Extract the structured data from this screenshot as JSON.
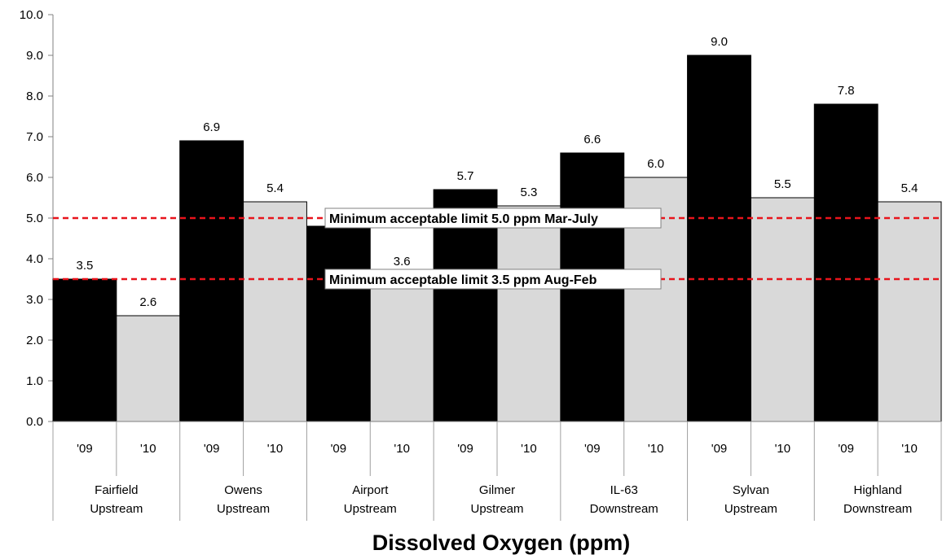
{
  "chart_data": {
    "type": "bar",
    "title": "Dissolved Oxygen (ppm)",
    "groups": [
      {
        "line1": "Fairfield",
        "line2": "Upstream"
      },
      {
        "line1": "Owens",
        "line2": "Upstream"
      },
      {
        "line1": "Airport",
        "line2": "Upstream"
      },
      {
        "line1": "Gilmer",
        "line2": "Upstream"
      },
      {
        "line1": "IL-63",
        "line2": "Downstream"
      },
      {
        "line1": "Sylvan",
        "line2": "Upstream"
      },
      {
        "line1": "Highland",
        "line2": "Downstream"
      }
    ],
    "series": [
      {
        "name": "'09",
        "color": "#000000",
        "values": [
          3.5,
          6.9,
          4.8,
          5.7,
          6.6,
          9.0,
          7.8
        ],
        "labels": [
          "3.5",
          "6.9",
          "4.8",
          "5.7",
          "6.6",
          "9.0",
          "7.8"
        ]
      },
      {
        "name": "'10",
        "color": "#d9d9d9",
        "values": [
          2.6,
          5.4,
          3.6,
          5.3,
          6.0,
          5.5,
          5.4
        ],
        "labels": [
          "2.6",
          "5.4",
          "3.6",
          "5.3",
          "6.0",
          "5.5",
          "5.4"
        ]
      }
    ],
    "ylim": [
      0,
      10
    ],
    "yticks": [
      "0.0",
      "1.0",
      "2.0",
      "3.0",
      "4.0",
      "5.0",
      "6.0",
      "7.0",
      "8.0",
      "9.0",
      "10.0"
    ],
    "reference_lines": [
      {
        "value": 5.0,
        "label": "Minimum acceptable limit 5.0 ppm Mar-July",
        "color": "#e8141c"
      },
      {
        "value": 3.5,
        "label": "Minimum acceptable limit 3.5 ppm Aug-Feb",
        "color": "#e8141c"
      }
    ]
  }
}
